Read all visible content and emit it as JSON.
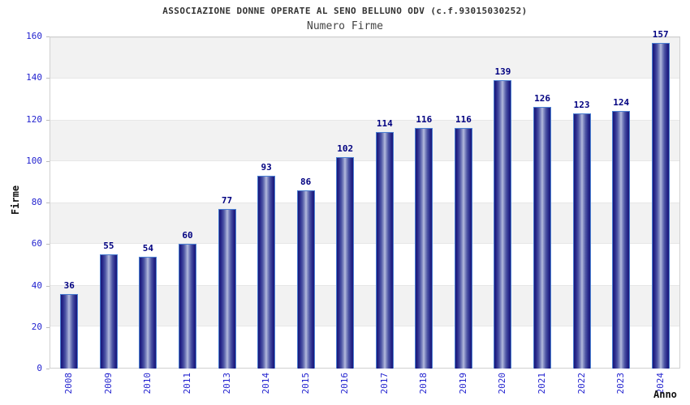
{
  "chart_data": {
    "type": "bar",
    "title": "ASSOCIAZIONE DONNE OPERATE AL SENO BELLUNO ODV (c.f.93015030252)",
    "subtitle": "Numero Firme",
    "xlabel": "Anno",
    "ylabel": "Firme",
    "categories": [
      "2008",
      "2009",
      "2010",
      "2011",
      "2013",
      "2014",
      "2015",
      "2016",
      "2017",
      "2018",
      "2019",
      "2020",
      "2021",
      "2022",
      "2023",
      "2024"
    ],
    "values": [
      36,
      55,
      54,
      60,
      77,
      93,
      86,
      102,
      114,
      116,
      116,
      139,
      126,
      123,
      124,
      157
    ],
    "ylim": [
      0,
      160
    ],
    "ytick_step": 20,
    "yticks": [
      0,
      20,
      40,
      60,
      80,
      100,
      120,
      140,
      160
    ],
    "grid": "alternating horizontal bands, gray and white, every 20 units",
    "legend": "none",
    "colors": {
      "bar_dark": "#1a1a78",
      "bar_light": "#bcc2e0",
      "bar_border": "#4b7fd2",
      "tick_label": "#2323cf",
      "data_label": "#000080",
      "band_gray": "#f2f2f2",
      "band_white": "#ffffff",
      "plot_border": "#d0d0d0",
      "title": "#333333",
      "subtitle": "#444444",
      "axis_title": "#111111"
    }
  }
}
